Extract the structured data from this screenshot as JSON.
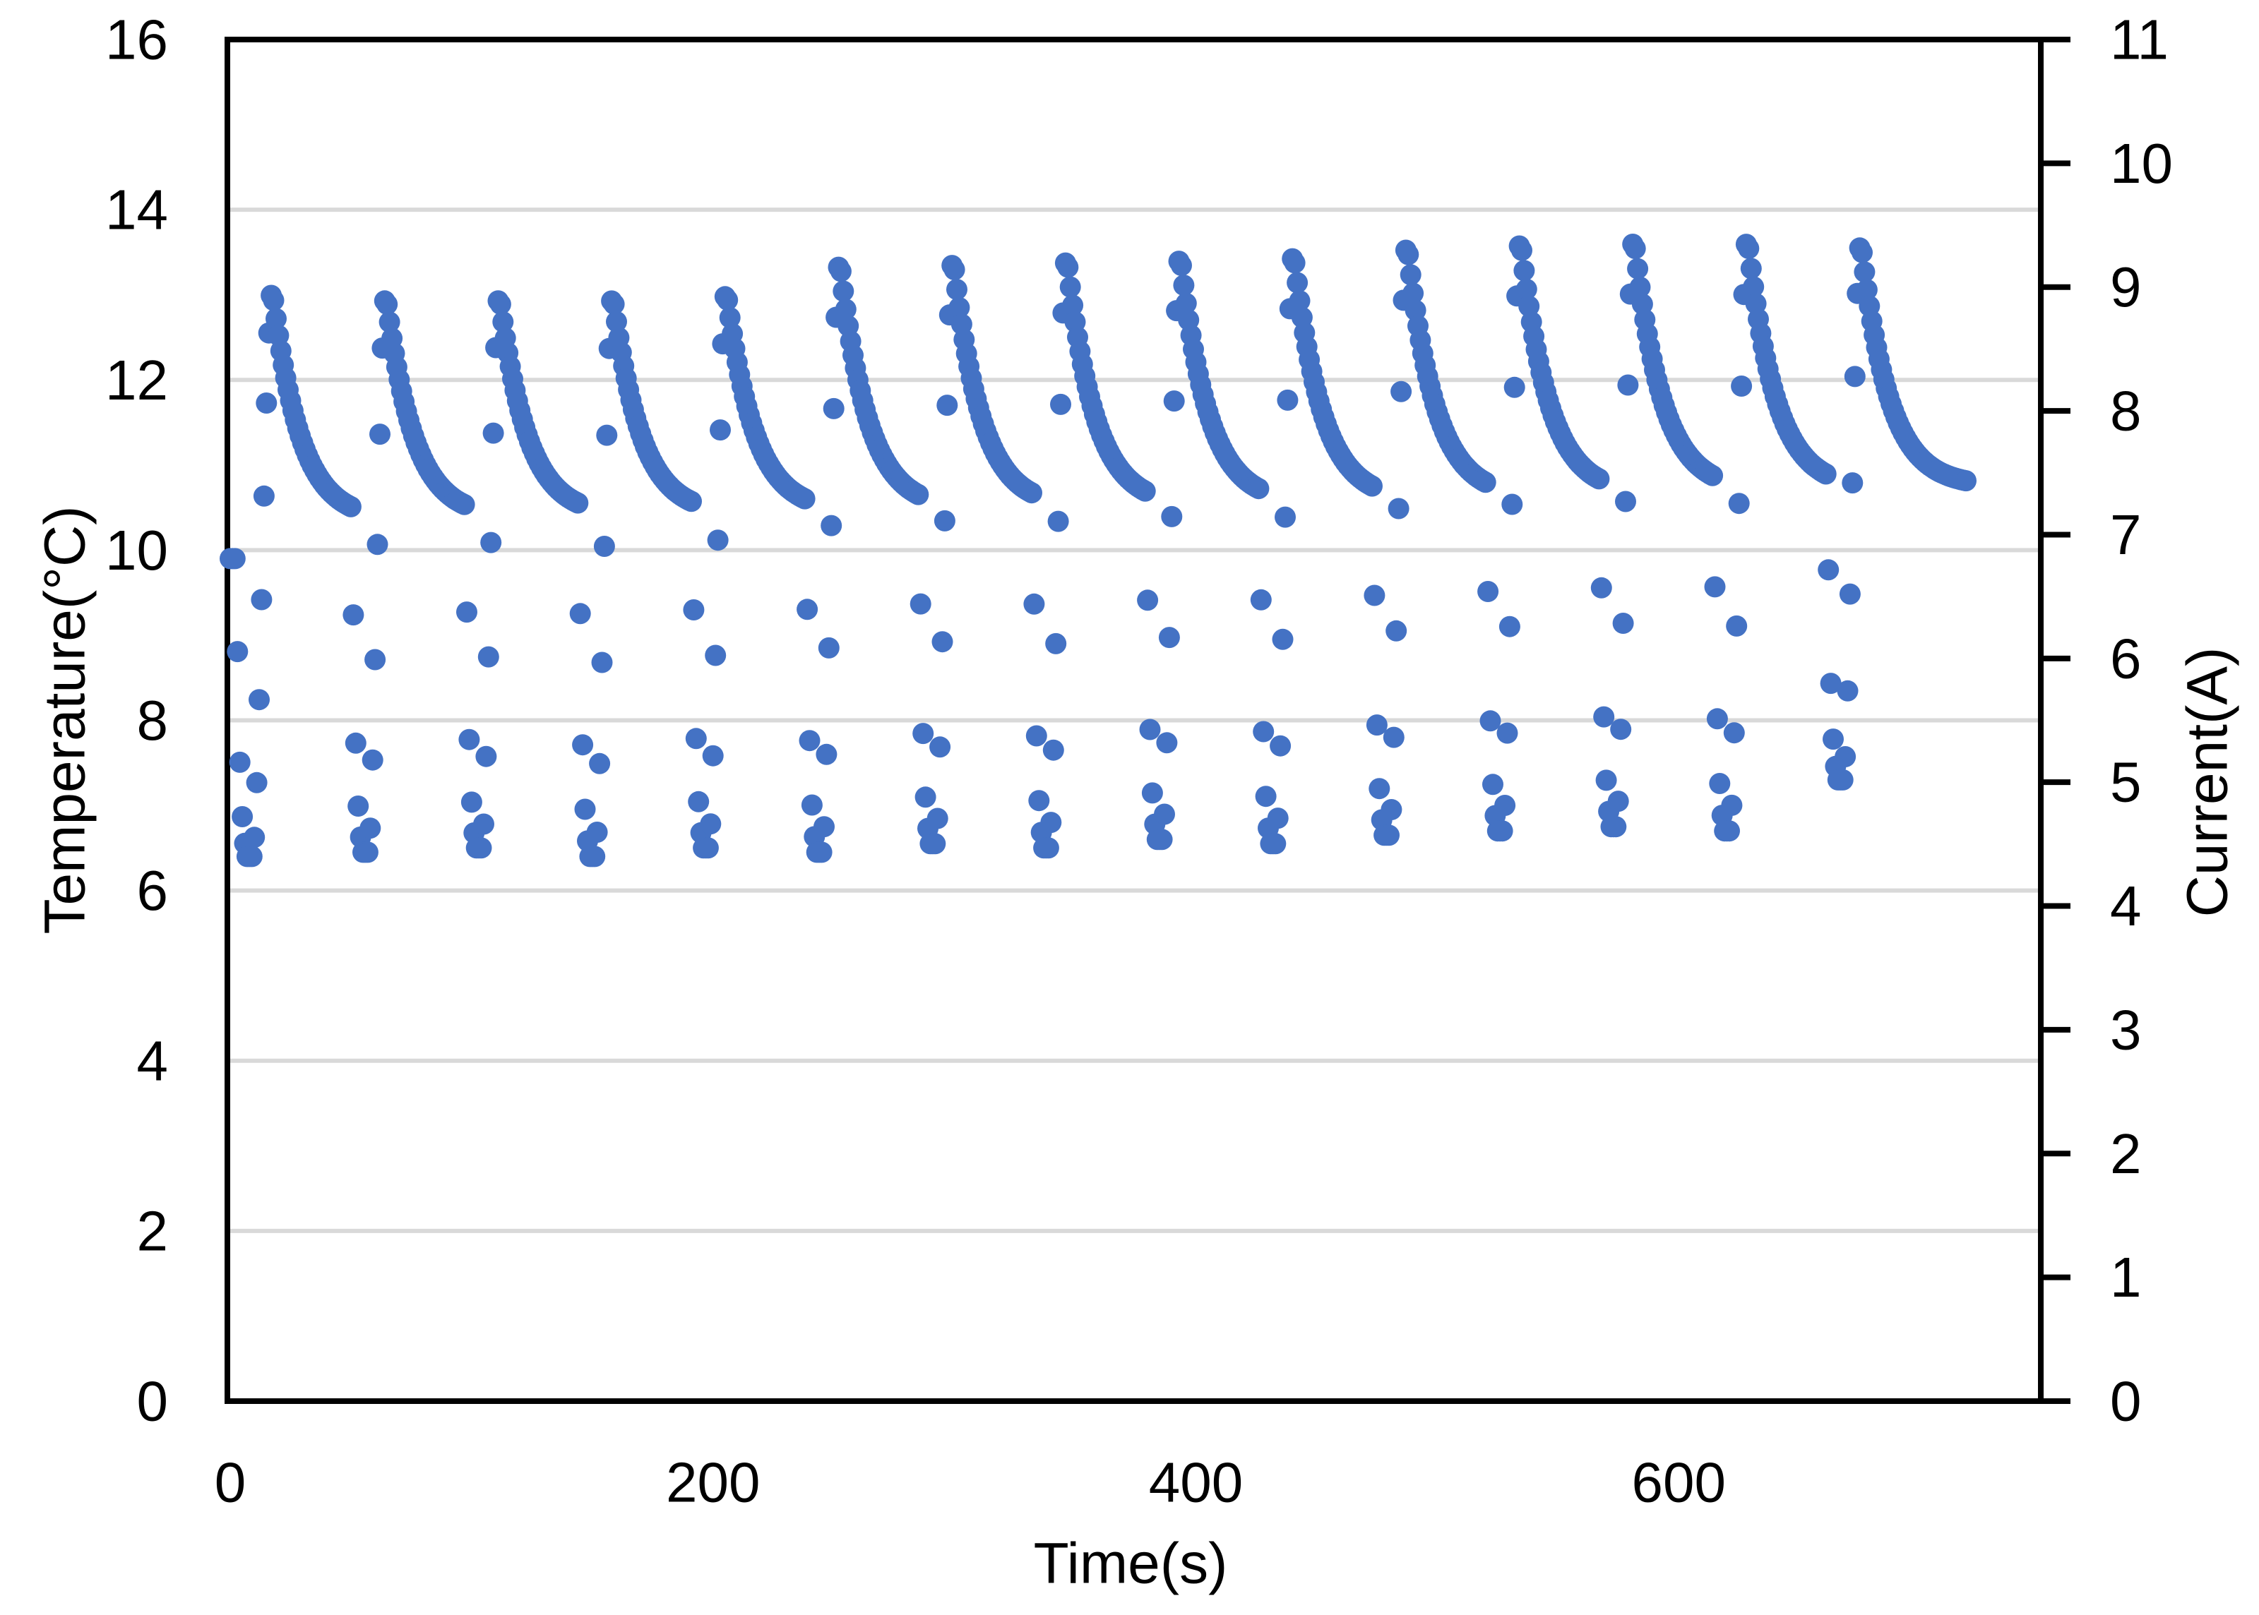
{
  "chart_data": {
    "type": "scatter",
    "title": "",
    "xlabel": "Time(s)",
    "ylabel_left": "Temperature(°C)",
    "ylabel_right": "Current(A)",
    "x_ticks": [
      0,
      200,
      400,
      600
    ],
    "y_left_ticks": [
      16,
      14,
      12,
      10,
      8,
      6,
      4,
      2,
      0
    ],
    "y_right_ticks": [
      11,
      10,
      9,
      8,
      7,
      6,
      5,
      4,
      3,
      2,
      1,
      0
    ],
    "xlim": [
      0,
      750
    ],
    "ylim_left": [
      0,
      16
    ],
    "ylim_right": [
      0,
      11
    ],
    "grid": "horizontal-even-temps",
    "legend": "none",
    "marker_color": "#4472C4",
    "gridline_color": "#D9D9D9",
    "axis_color": "#000000",
    "marker_radius_px": 15,
    "sampling_interval_s": 1,
    "series_end_s": 719,
    "initial_segment": {
      "start_temp_c": 9.9,
      "hold_until_s": 2.5,
      "drop_duration_s": 4.5,
      "dwell_s": 2
    },
    "cycle_timing": {
      "period_s": 47,
      "decay_duration_s": 33,
      "drop_duration_s": 4.5,
      "dwell_s": 2,
      "rise_duration_s": 7.5,
      "decay_tau_s": 11.5
    },
    "cycles": [
      {
        "peak_time_s": 17.5,
        "peak_temp_c": 13.05,
        "min_before_c": 6.4,
        "base_after_c": 10.35
      },
      {
        "peak_time_s": 64.5,
        "peak_temp_c": 13.0,
        "min_before_c": 6.45,
        "base_after_c": 10.38
      },
      {
        "peak_time_s": 111.5,
        "peak_temp_c": 13.0,
        "min_before_c": 6.5,
        "base_after_c": 10.4
      },
      {
        "peak_time_s": 158.5,
        "peak_temp_c": 13.0,
        "min_before_c": 6.4,
        "base_after_c": 10.42
      },
      {
        "peak_time_s": 205.5,
        "peak_temp_c": 13.05,
        "min_before_c": 6.5,
        "base_after_c": 10.45
      },
      {
        "peak_time_s": 252.5,
        "peak_temp_c": 13.4,
        "min_before_c": 6.45,
        "base_after_c": 10.48
      },
      {
        "peak_time_s": 299.5,
        "peak_temp_c": 13.42,
        "min_before_c": 6.55,
        "base_after_c": 10.5
      },
      {
        "peak_time_s": 346.5,
        "peak_temp_c": 13.45,
        "min_before_c": 6.5,
        "base_after_c": 10.52
      },
      {
        "peak_time_s": 393.5,
        "peak_temp_c": 13.47,
        "min_before_c": 6.6,
        "base_after_c": 10.55
      },
      {
        "peak_time_s": 440.5,
        "peak_temp_c": 13.5,
        "min_before_c": 6.55,
        "base_after_c": 10.58
      },
      {
        "peak_time_s": 487.5,
        "peak_temp_c": 13.6,
        "min_before_c": 6.65,
        "base_after_c": 10.62
      },
      {
        "peak_time_s": 534.5,
        "peak_temp_c": 13.65,
        "min_before_c": 6.7,
        "base_after_c": 10.66
      },
      {
        "peak_time_s": 581.5,
        "peak_temp_c": 13.67,
        "min_before_c": 6.75,
        "base_after_c": 10.7
      },
      {
        "peak_time_s": 628.5,
        "peak_temp_c": 13.67,
        "min_before_c": 6.7,
        "base_after_c": 10.72
      },
      {
        "peak_time_s": 675.5,
        "peak_temp_c": 13.62,
        "min_before_c": 7.3,
        "base_after_c": 10.75
      }
    ]
  }
}
